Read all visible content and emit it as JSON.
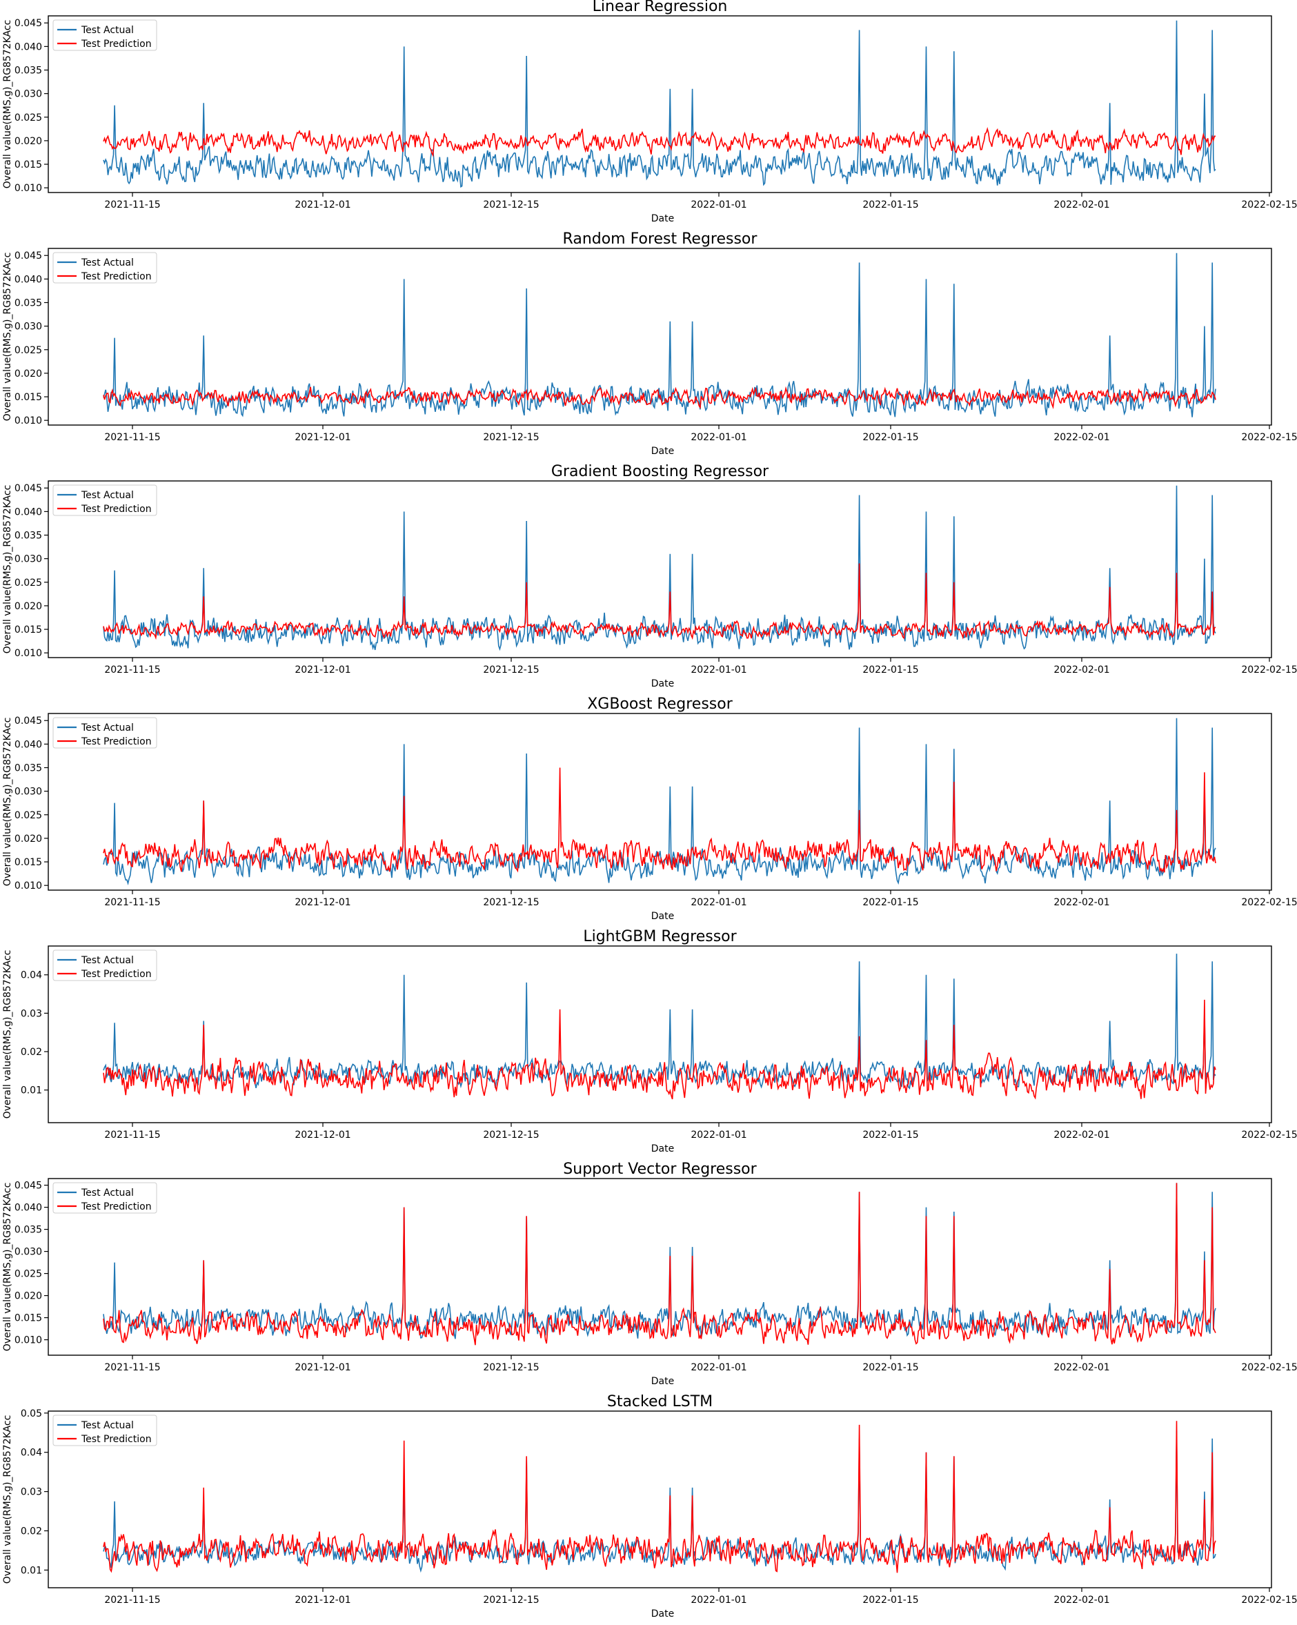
{
  "colors": {
    "actual": "#1f77b4",
    "prediction": "#ff0000"
  },
  "chart_data": [
    {
      "type": "line",
      "title": "Linear Regression",
      "xlabel": "Date",
      "ylabel": "Overall value(RMS,g)_RG8572KAcc",
      "x_tick_labels": [
        "2021-11-15",
        "2021-12-01",
        "2021-12-15",
        "2022-01-01",
        "2022-01-15",
        "2022-02-01",
        "2022-02-15"
      ],
      "y_tick_labels": [
        "0.010",
        "0.015",
        "0.020",
        "0.025",
        "0.030",
        "0.035",
        "0.040",
        "0.045"
      ],
      "y_tick_values": [
        0.01,
        0.015,
        0.02,
        0.025,
        0.03,
        0.035,
        0.04,
        0.045
      ],
      "ylim": [
        0.009,
        0.0465
      ],
      "legend": {
        "placement": "top-left",
        "entries": [
          "Test Actual",
          "Test Prediction"
        ]
      },
      "series": [
        {
          "name": "Test Actual",
          "baseline": 0.0145,
          "noise": 0.0022,
          "spikes": [
            [
              0.01,
              0.0275
            ],
            [
              0.09,
              0.028
            ],
            [
              0.27,
              0.04
            ],
            [
              0.38,
              0.038
            ],
            [
              0.51,
              0.031
            ],
            [
              0.53,
              0.031
            ],
            [
              0.68,
              0.0435
            ],
            [
              0.74,
              0.04
            ],
            [
              0.765,
              0.039
            ],
            [
              0.905,
              0.028
            ],
            [
              0.965,
              0.0455
            ],
            [
              0.99,
              0.03
            ],
            [
              0.997,
              0.0435
            ]
          ]
        },
        {
          "name": "Test Prediction",
          "baseline": 0.0198,
          "noise": 0.0014,
          "spikes": []
        }
      ]
    },
    {
      "type": "line",
      "title": "Random Forest Regressor",
      "xlabel": "Date",
      "ylabel": "Overall value(RMS,g)_RG8572KAcc",
      "x_tick_labels": [
        "2021-11-15",
        "2021-12-01",
        "2021-12-15",
        "2022-01-01",
        "2022-01-15",
        "2022-02-01",
        "2022-02-15"
      ],
      "y_tick_labels": [
        "0.010",
        "0.015",
        "0.020",
        "0.025",
        "0.030",
        "0.035",
        "0.040",
        "0.045"
      ],
      "y_tick_values": [
        0.01,
        0.015,
        0.02,
        0.025,
        0.03,
        0.035,
        0.04,
        0.045
      ],
      "ylim": [
        0.009,
        0.0465
      ],
      "legend": {
        "placement": "top-left",
        "entries": [
          "Test Actual",
          "Test Prediction"
        ]
      },
      "series": [
        {
          "name": "Test Actual",
          "baseline": 0.0145,
          "noise": 0.0022,
          "spikes": [
            [
              0.01,
              0.0275
            ],
            [
              0.09,
              0.028
            ],
            [
              0.27,
              0.04
            ],
            [
              0.38,
              0.038
            ],
            [
              0.51,
              0.031
            ],
            [
              0.53,
              0.031
            ],
            [
              0.68,
              0.0435
            ],
            [
              0.74,
              0.04
            ],
            [
              0.765,
              0.039
            ],
            [
              0.905,
              0.028
            ],
            [
              0.965,
              0.0455
            ],
            [
              0.99,
              0.03
            ],
            [
              0.997,
              0.0435
            ]
          ]
        },
        {
          "name": "Test Prediction",
          "baseline": 0.015,
          "noise": 0.0011,
          "spikes": []
        }
      ]
    },
    {
      "type": "line",
      "title": "Gradient Boosting Regressor",
      "xlabel": "Date",
      "ylabel": "Overall value(RMS,g)_RG8572KAcc",
      "x_tick_labels": [
        "2021-11-15",
        "2021-12-01",
        "2021-12-15",
        "2022-01-01",
        "2022-01-15",
        "2022-02-01",
        "2022-02-15"
      ],
      "y_tick_labels": [
        "0.010",
        "0.015",
        "0.020",
        "0.025",
        "0.030",
        "0.035",
        "0.040",
        "0.045"
      ],
      "y_tick_values": [
        0.01,
        0.015,
        0.02,
        0.025,
        0.03,
        0.035,
        0.04,
        0.045
      ],
      "ylim": [
        0.009,
        0.0465
      ],
      "legend": {
        "placement": "top-left",
        "entries": [
          "Test Actual",
          "Test Prediction"
        ]
      },
      "series": [
        {
          "name": "Test Actual",
          "baseline": 0.0145,
          "noise": 0.0022,
          "spikes": [
            [
              0.01,
              0.0275
            ],
            [
              0.09,
              0.028
            ],
            [
              0.27,
              0.04
            ],
            [
              0.38,
              0.038
            ],
            [
              0.51,
              0.031
            ],
            [
              0.53,
              0.031
            ],
            [
              0.68,
              0.0435
            ],
            [
              0.74,
              0.04
            ],
            [
              0.765,
              0.039
            ],
            [
              0.905,
              0.028
            ],
            [
              0.965,
              0.0455
            ],
            [
              0.99,
              0.03
            ],
            [
              0.997,
              0.0435
            ]
          ]
        },
        {
          "name": "Test Prediction",
          "baseline": 0.015,
          "noise": 0.001,
          "spikes": [
            [
              0.09,
              0.022
            ],
            [
              0.27,
              0.022
            ],
            [
              0.38,
              0.025
            ],
            [
              0.51,
              0.023
            ],
            [
              0.68,
              0.029
            ],
            [
              0.74,
              0.027
            ],
            [
              0.765,
              0.025
            ],
            [
              0.905,
              0.024
            ],
            [
              0.965,
              0.027
            ],
            [
              0.997,
              0.023
            ]
          ]
        }
      ]
    },
    {
      "type": "line",
      "title": "XGBoost Regressor",
      "xlabel": "Date",
      "ylabel": "Overall value(RMS,g)_RG8572KAcc",
      "x_tick_labels": [
        "2021-11-15",
        "2021-12-01",
        "2021-12-15",
        "2022-01-01",
        "2022-01-15",
        "2022-02-01",
        "2022-02-15"
      ],
      "y_tick_labels": [
        "0.010",
        "0.015",
        "0.020",
        "0.025",
        "0.030",
        "0.035",
        "0.040",
        "0.045"
      ],
      "y_tick_values": [
        0.01,
        0.015,
        0.02,
        0.025,
        0.03,
        0.035,
        0.04,
        0.045
      ],
      "ylim": [
        0.009,
        0.0465
      ],
      "legend": {
        "placement": "top-left",
        "entries": [
          "Test Actual",
          "Test Prediction"
        ]
      },
      "series": [
        {
          "name": "Test Actual",
          "baseline": 0.0145,
          "noise": 0.0022,
          "spikes": [
            [
              0.01,
              0.0275
            ],
            [
              0.09,
              0.028
            ],
            [
              0.27,
              0.04
            ],
            [
              0.38,
              0.038
            ],
            [
              0.51,
              0.031
            ],
            [
              0.53,
              0.031
            ],
            [
              0.68,
              0.0435
            ],
            [
              0.74,
              0.04
            ],
            [
              0.765,
              0.039
            ],
            [
              0.905,
              0.028
            ],
            [
              0.965,
              0.0455
            ],
            [
              0.99,
              0.03
            ],
            [
              0.997,
              0.0435
            ]
          ]
        },
        {
          "name": "Test Prediction",
          "baseline": 0.0165,
          "noise": 0.002,
          "spikes": [
            [
              0.09,
              0.028
            ],
            [
              0.27,
              0.029
            ],
            [
              0.41,
              0.035
            ],
            [
              0.68,
              0.026
            ],
            [
              0.765,
              0.032
            ],
            [
              0.965,
              0.026
            ],
            [
              0.99,
              0.034
            ]
          ]
        }
      ]
    },
    {
      "type": "line",
      "title": "LightGBM Regressor",
      "xlabel": "Date",
      "ylabel": "Overall value(RMS,g)_RG8572KAcc",
      "x_tick_labels": [
        "2021-11-15",
        "2021-12-01",
        "2021-12-15",
        "2022-01-01",
        "2022-01-15",
        "2022-02-01",
        "2022-02-15"
      ],
      "y_tick_labels": [
        "0.01",
        "0.02",
        "0.03",
        "0.04"
      ],
      "y_tick_values": [
        0.01,
        0.02,
        0.03,
        0.04
      ],
      "ylim": [
        0.0015,
        0.0475
      ],
      "legend": {
        "placement": "top-left",
        "entries": [
          "Test Actual",
          "Test Prediction"
        ]
      },
      "series": [
        {
          "name": "Test Actual",
          "baseline": 0.0145,
          "noise": 0.0022,
          "spikes": [
            [
              0.01,
              0.0275
            ],
            [
              0.09,
              0.028
            ],
            [
              0.27,
              0.04
            ],
            [
              0.38,
              0.038
            ],
            [
              0.51,
              0.031
            ],
            [
              0.53,
              0.031
            ],
            [
              0.68,
              0.0435
            ],
            [
              0.74,
              0.04
            ],
            [
              0.765,
              0.039
            ],
            [
              0.905,
              0.028
            ],
            [
              0.965,
              0.0455
            ],
            [
              0.99,
              0.03
            ],
            [
              0.997,
              0.0435
            ]
          ]
        },
        {
          "name": "Test Prediction",
          "baseline": 0.013,
          "noise": 0.003,
          "spikes": [
            [
              0.09,
              0.027
            ],
            [
              0.41,
              0.031
            ],
            [
              0.68,
              0.024
            ],
            [
              0.74,
              0.023
            ],
            [
              0.765,
              0.027
            ],
            [
              0.99,
              0.0335
            ]
          ]
        }
      ]
    },
    {
      "type": "line",
      "title": "Support Vector Regressor",
      "xlabel": "Date",
      "ylabel": "Overall value(RMS,g)_RG8572KAcc",
      "x_tick_labels": [
        "2021-11-15",
        "2021-12-01",
        "2021-12-15",
        "2022-01-01",
        "2022-01-15",
        "2022-02-01",
        "2022-02-15"
      ],
      "y_tick_labels": [
        "0.010",
        "0.015",
        "0.020",
        "0.025",
        "0.030",
        "0.035",
        "0.040",
        "0.045"
      ],
      "y_tick_values": [
        0.01,
        0.015,
        0.02,
        0.025,
        0.03,
        0.035,
        0.04,
        0.045
      ],
      "ylim": [
        0.0065,
        0.0465
      ],
      "legend": {
        "placement": "top-left",
        "entries": [
          "Test Actual",
          "Test Prediction"
        ]
      },
      "series": [
        {
          "name": "Test Actual",
          "baseline": 0.0145,
          "noise": 0.0022,
          "spikes": [
            [
              0.01,
              0.0275
            ],
            [
              0.09,
              0.028
            ],
            [
              0.27,
              0.04
            ],
            [
              0.38,
              0.038
            ],
            [
              0.51,
              0.031
            ],
            [
              0.53,
              0.031
            ],
            [
              0.68,
              0.0435
            ],
            [
              0.74,
              0.04
            ],
            [
              0.765,
              0.039
            ],
            [
              0.905,
              0.028
            ],
            [
              0.965,
              0.0455
            ],
            [
              0.99,
              0.03
            ],
            [
              0.997,
              0.0435
            ]
          ]
        },
        {
          "name": "Test Prediction",
          "baseline": 0.013,
          "noise": 0.0022,
          "spikes": [
            [
              0.09,
              0.028
            ],
            [
              0.27,
              0.04
            ],
            [
              0.38,
              0.038
            ],
            [
              0.51,
              0.029
            ],
            [
              0.53,
              0.029
            ],
            [
              0.68,
              0.0435
            ],
            [
              0.74,
              0.038
            ],
            [
              0.765,
              0.038
            ],
            [
              0.905,
              0.026
            ],
            [
              0.965,
              0.0455
            ],
            [
              0.99,
              0.028
            ],
            [
              0.997,
              0.04
            ]
          ]
        }
      ]
    },
    {
      "type": "line",
      "title": "Stacked LSTM",
      "xlabel": "Date",
      "ylabel": "Overall value(RMS,g)_RG8572KAcc",
      "x_tick_labels": [
        "2021-11-15",
        "2021-12-01",
        "2021-12-15",
        "2022-01-01",
        "2022-01-15",
        "2022-02-01",
        "2022-02-15"
      ],
      "y_tick_labels": [
        "0.01",
        "0.02",
        "0.03",
        "0.04",
        "0.05"
      ],
      "y_tick_values": [
        0.01,
        0.02,
        0.03,
        0.04,
        0.05
      ],
      "ylim": [
        0.0055,
        0.0505
      ],
      "legend": {
        "placement": "top-left",
        "entries": [
          "Test Actual",
          "Test Prediction"
        ]
      },
      "series": [
        {
          "name": "Test Actual",
          "baseline": 0.0145,
          "noise": 0.0022,
          "spikes": [
            [
              0.01,
              0.0275
            ],
            [
              0.09,
              0.028
            ],
            [
              0.27,
              0.032
            ],
            [
              0.38,
              0.038
            ],
            [
              0.51,
              0.031
            ],
            [
              0.53,
              0.031
            ],
            [
              0.68,
              0.0435
            ],
            [
              0.74,
              0.04
            ],
            [
              0.765,
              0.039
            ],
            [
              0.905,
              0.028
            ],
            [
              0.965,
              0.0455
            ],
            [
              0.99,
              0.03
            ],
            [
              0.997,
              0.0435
            ]
          ]
        },
        {
          "name": "Test Prediction",
          "baseline": 0.015,
          "noise": 0.0028,
          "spikes": [
            [
              0.09,
              0.031
            ],
            [
              0.27,
              0.043
            ],
            [
              0.38,
              0.039
            ],
            [
              0.51,
              0.029
            ],
            [
              0.53,
              0.029
            ],
            [
              0.68,
              0.047
            ],
            [
              0.74,
              0.04
            ],
            [
              0.765,
              0.039
            ],
            [
              0.905,
              0.026
            ],
            [
              0.965,
              0.048
            ],
            [
              0.99,
              0.028
            ],
            [
              0.997,
              0.04
            ]
          ]
        }
      ]
    }
  ]
}
